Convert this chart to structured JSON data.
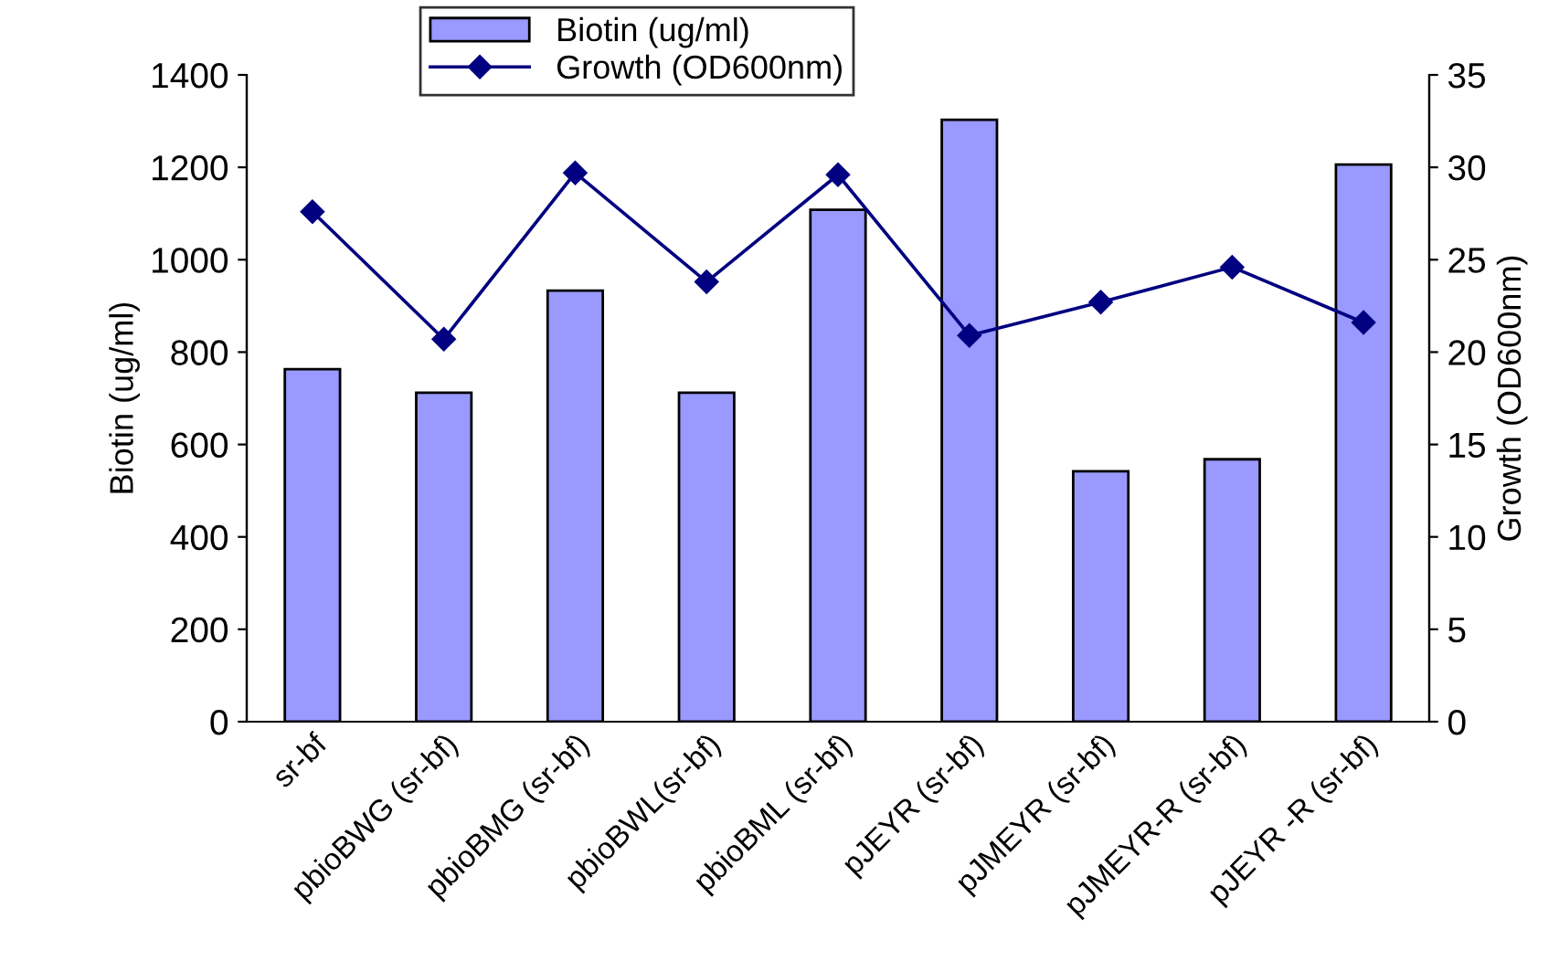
{
  "chart_data": {
    "type": "bar",
    "ylabel": "Biotin (ug/ml)",
    "y2label": "Growth (OD600nm)",
    "categories": [
      "sr-bf",
      "pbioBWG (sr-bf)",
      "pbioBMG (sr-bf)",
      "pbioBWL(sr-bf)",
      "pbioBML (sr-bf)",
      "pJEYR (sr-bf)",
      "pJMEYR (sr-bf)",
      "pJMEYR-R (sr-bf)",
      "pJEYR -R (sr-bf)"
    ],
    "series": [
      {
        "name": "Biotin (ug/ml)",
        "color": "#9999ff",
        "values": [
          763,
          712,
          933,
          712,
          1108,
          1303,
          542,
          568,
          1206
        ]
      },
      {
        "name": "Growth (OD600nm)",
        "type": "line",
        "axis": "y2",
        "color": "#000080",
        "marker": "diamond",
        "values": [
          27.6,
          20.7,
          29.7,
          23.8,
          29.6,
          20.9,
          22.7,
          24.6,
          21.6
        ]
      }
    ],
    "ylim": [
      0,
      1400
    ],
    "yticks": [
      0,
      200,
      400,
      600,
      800,
      1000,
      1200,
      1400
    ],
    "y2lim": [
      0,
      35
    ],
    "y2ticks": [
      0,
      5,
      10,
      15,
      20,
      25,
      30,
      35
    ],
    "grid": false,
    "legend": "top"
  }
}
